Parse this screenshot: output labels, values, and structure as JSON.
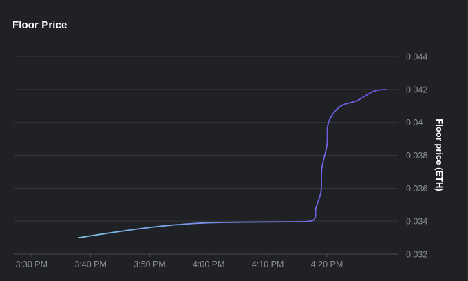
{
  "panel": {
    "title": "Floor Price"
  },
  "chart_data": {
    "type": "line",
    "title": "Floor Price",
    "xlabel": "",
    "ylabel": "Floor price (ETH)",
    "y_axis_position": "right",
    "grid": true,
    "ylim": [
      0.032,
      0.044
    ],
    "yticks": [
      0.032,
      0.034,
      0.036,
      0.038,
      0.04,
      0.042,
      0.044
    ],
    "ytick_labels": [
      "0.032",
      "0.034",
      "0.036",
      "0.038",
      "0.04",
      "0.042",
      "0.044"
    ],
    "xlim": [
      "3:27 PM",
      "4:32 PM"
    ],
    "xticks": [
      "3:30 PM",
      "3:40 PM",
      "3:50 PM",
      "4:00 PM",
      "4:10 PM",
      "4:20 PM"
    ],
    "series": [
      {
        "color_start": "#7fc6e8",
        "color_end": "#6a4ce6",
        "x": [
          "3:38 PM",
          "3:42 PM",
          "3:46 PM",
          "3:50 PM",
          "3:54 PM",
          "3:58 PM",
          "4:02 PM",
          "4:06 PM",
          "4:10 PM",
          "4:14 PM",
          "4:17 PM",
          "4:18 PM",
          "4:18 PM",
          "4:19 PM",
          "4:19 PM",
          "4:20 PM",
          "4:20 PM",
          "4:21 PM",
          "4:22 PM",
          "4:23 PM",
          "4:24 PM",
          "4:25 PM",
          "4:26 PM",
          "4:28 PM",
          "4:30 PM"
        ],
        "values": [
          0.033,
          0.03322,
          0.03343,
          0.03362,
          0.03377,
          0.03387,
          0.03392,
          0.03394,
          0.03395,
          0.03396,
          0.03399,
          0.0342,
          0.0348,
          0.0358,
          0.0372,
          0.0386,
          0.0398,
          0.0405,
          0.0409,
          0.0411,
          0.0412,
          0.0413,
          0.0415,
          0.0419,
          0.042
        ]
      }
    ]
  }
}
